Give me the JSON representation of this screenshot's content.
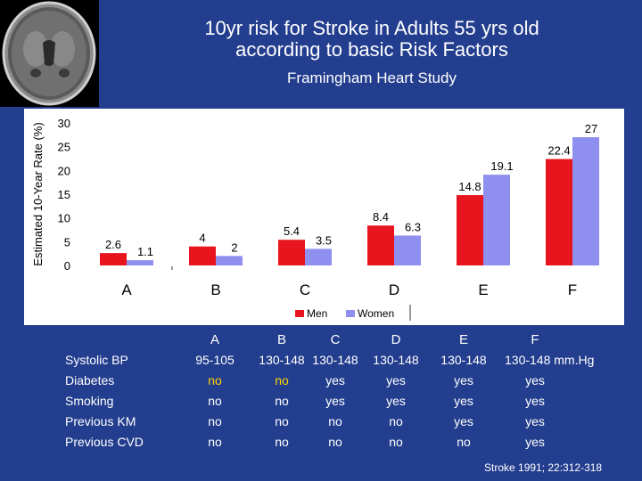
{
  "header": {
    "title_line1": "10yr risk for Stroke in Adults 55 yrs old",
    "title_line2": "according to basic Risk Factors",
    "subtitle": "Framingham Heart Study"
  },
  "chart_data": {
    "type": "bar",
    "ylabel": "Estimated 10-Year Rate (%)",
    "ylim": [
      0,
      30
    ],
    "yticks": [
      0,
      5,
      10,
      15,
      20,
      25,
      30
    ],
    "categories": [
      "A",
      "B",
      "C",
      "D",
      "E",
      "F"
    ],
    "series": [
      {
        "name": "Men",
        "color": "#e8141e",
        "values": [
          2.6,
          4,
          5.4,
          8.4,
          14.8,
          22.4
        ],
        "labels": [
          "2.6",
          "4",
          "5.4",
          "8.4",
          "14.8",
          "22.4"
        ]
      },
      {
        "name": "Women",
        "color": "#8f8ff0",
        "values": [
          1.1,
          2,
          3.5,
          6.3,
          19.1,
          27
        ],
        "labels": [
          "1.1",
          "2",
          "3.5",
          "6.3",
          "19.1",
          "27"
        ]
      }
    ],
    "legend": "bottom"
  },
  "table": {
    "columns": [
      "A",
      "B",
      "C",
      "D",
      "E",
      "F"
    ],
    "rows": [
      {
        "label": "Systolic BP",
        "values": [
          "95-105",
          "130-148",
          "130-148",
          "130-148",
          "130-148",
          "130-148 mm.Hg"
        ]
      },
      {
        "label": "Diabetes",
        "values": [
          "no",
          "no",
          "yes",
          "yes",
          "yes",
          "yes"
        ]
      },
      {
        "label": "Smoking",
        "values": [
          "no",
          "no",
          "yes",
          "yes",
          "yes",
          "yes"
        ]
      },
      {
        "label": "Previous KM",
        "values": [
          "no",
          "no",
          "no",
          "no",
          "yes",
          "yes"
        ]
      },
      {
        "label": "Previous CVD",
        "values": [
          "no",
          "no",
          "no",
          "no",
          "no",
          "yes"
        ]
      }
    ]
  },
  "citation": "Stroke 1991; 22:312-318",
  "colors": {
    "background": "#233e8e",
    "men": "#e8141e",
    "women": "#8f8ff0",
    "diabetes_no": "#ffd400"
  }
}
